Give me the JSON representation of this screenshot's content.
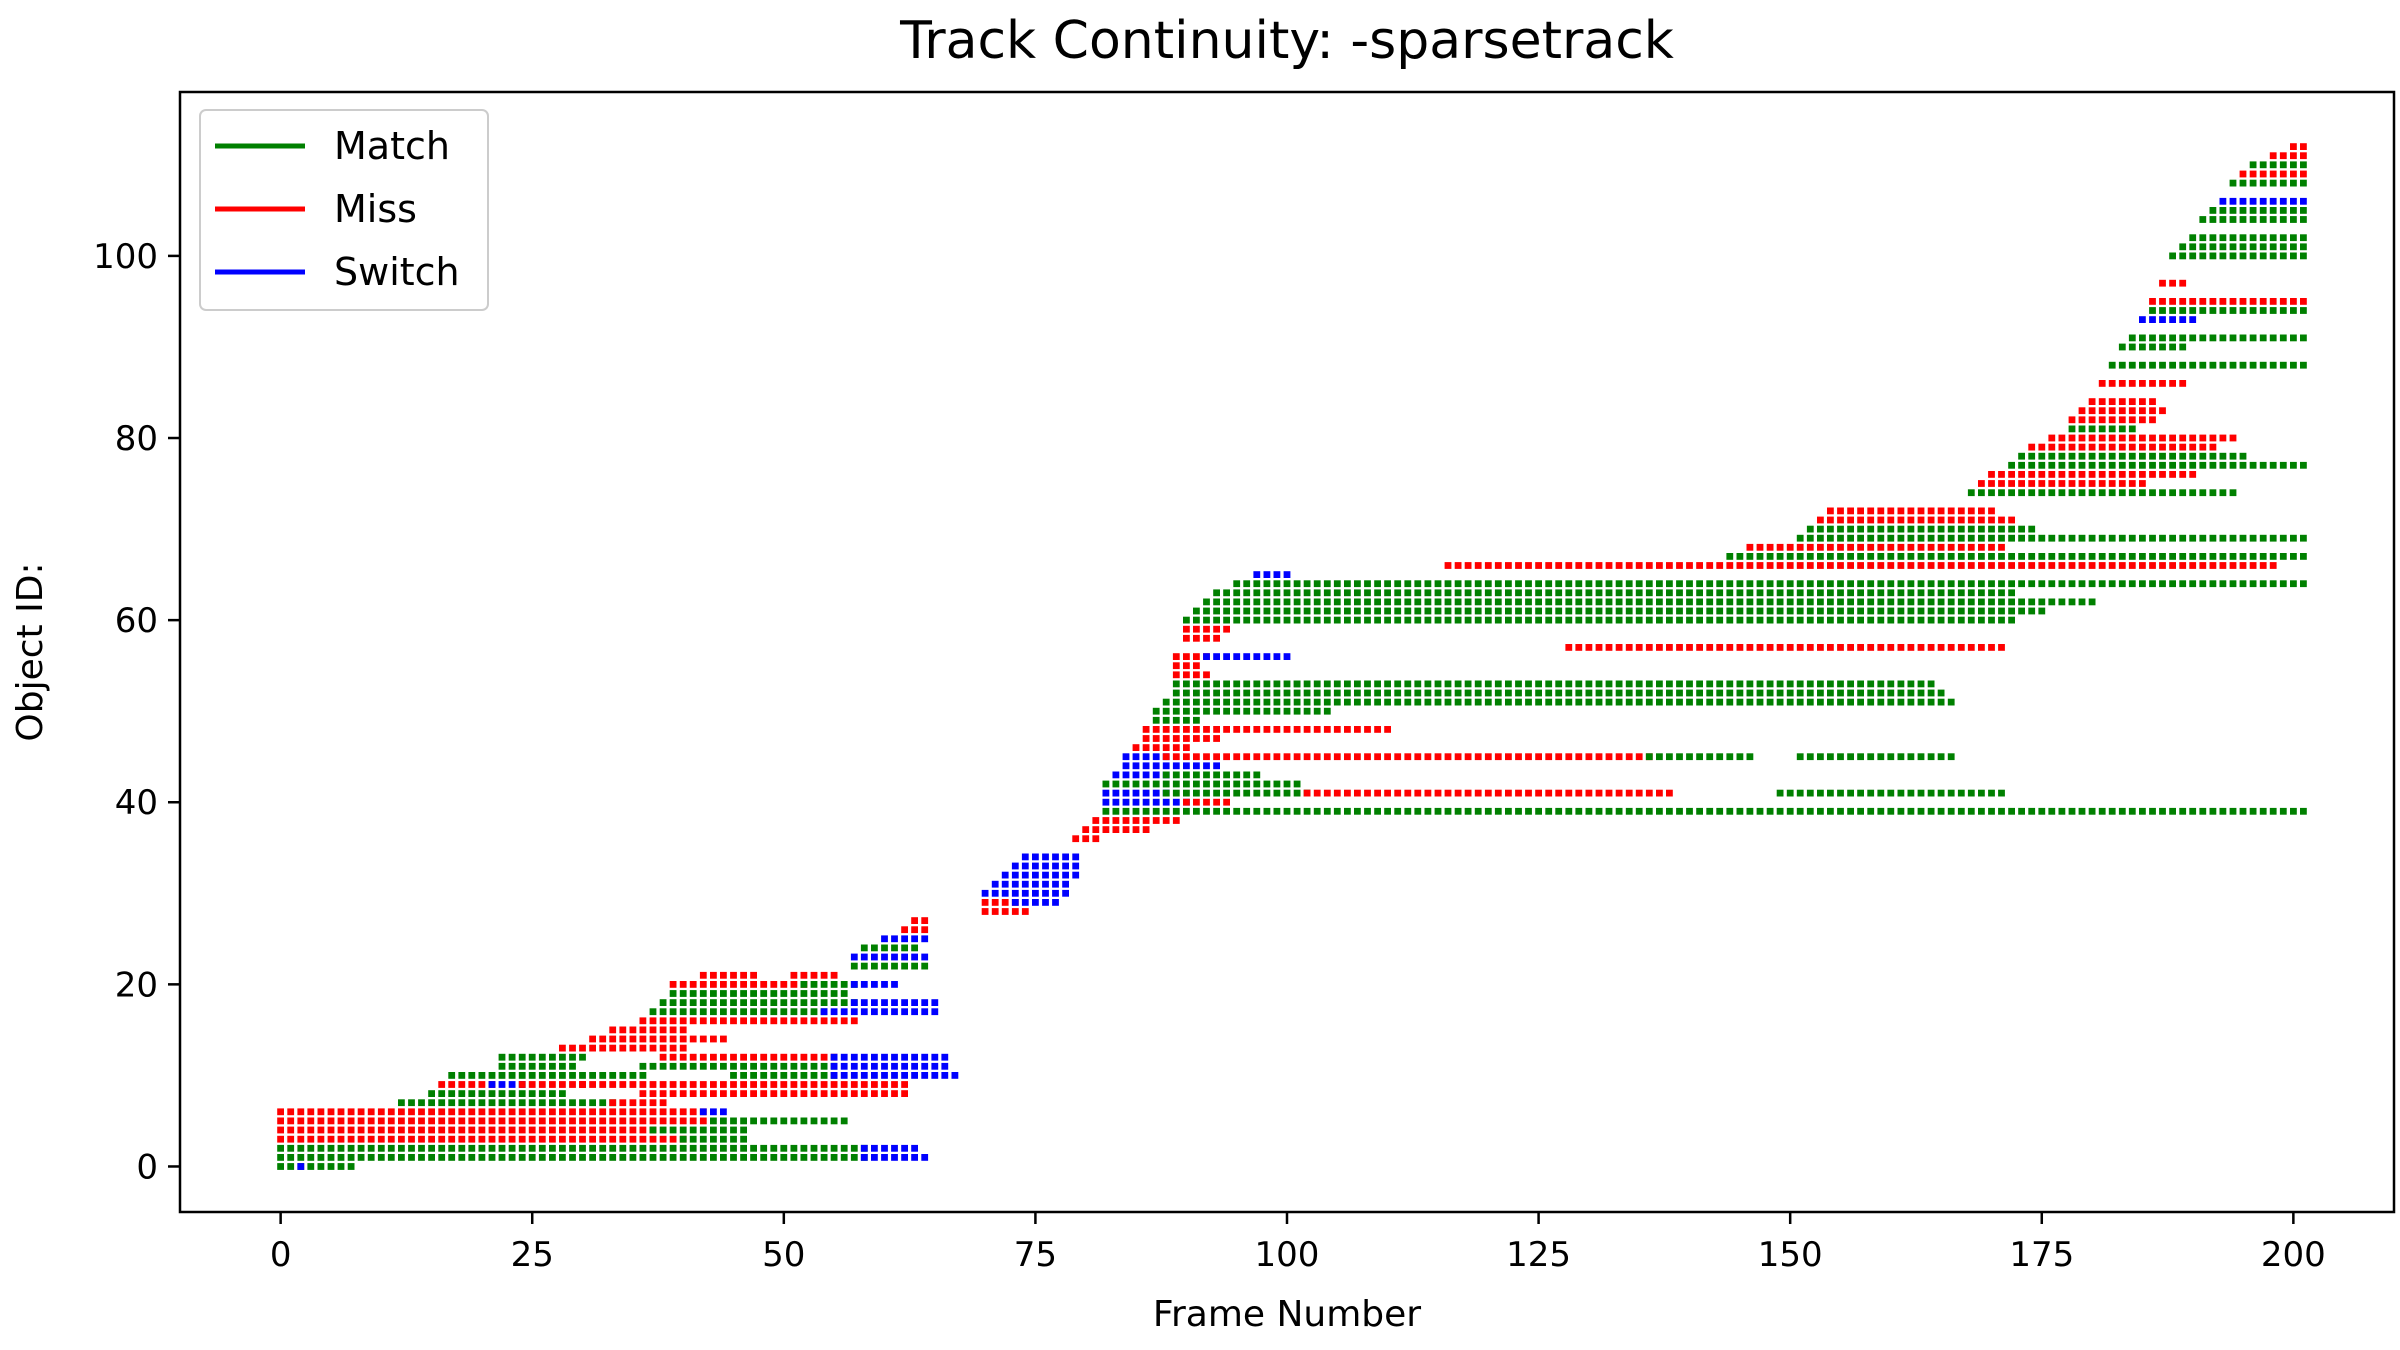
{
  "chart_data": {
    "type": "scatter",
    "title": "Track Continuity: -sparsetrack",
    "xlabel": "Frame Number",
    "ylabel": "Object ID:",
    "xlim": [
      -10,
      210
    ],
    "ylim": [
      -5,
      118
    ],
    "xticks": [
      0,
      25,
      50,
      75,
      100,
      125,
      150,
      175,
      200
    ],
    "yticks": [
      0,
      20,
      40,
      60,
      80,
      100
    ],
    "legend": {
      "placement": "top-left",
      "items": [
        {
          "key": "match",
          "label": "Match",
          "color": "#008000"
        },
        {
          "key": "miss",
          "label": "Miss",
          "color": "#ff0000"
        },
        {
          "key": "switch",
          "label": "Switch",
          "color": "#0000ff"
        }
      ]
    },
    "colors": {
      "match": "#008000",
      "miss": "#ff0000",
      "switch": "#0000ff"
    },
    "segments": [
      {
        "id": 0,
        "x0": 0,
        "x1": 7,
        "status": "match"
      },
      {
        "id": 0,
        "x0": 2,
        "x1": 2,
        "status": "switch"
      },
      {
        "id": 1,
        "x0": 0,
        "x1": 58,
        "status": "match"
      },
      {
        "id": 1,
        "x0": 58,
        "x1": 64,
        "status": "switch"
      },
      {
        "id": 2,
        "x0": 0,
        "x1": 58,
        "status": "match"
      },
      {
        "id": 2,
        "x0": 58,
        "x1": 63,
        "status": "switch"
      },
      {
        "id": 3,
        "x0": 0,
        "x1": 40,
        "status": "miss"
      },
      {
        "id": 3,
        "x0": 40,
        "x1": 46,
        "status": "match"
      },
      {
        "id": 4,
        "x0": 0,
        "x1": 37,
        "status": "miss"
      },
      {
        "id": 4,
        "x0": 37,
        "x1": 41,
        "status": "match"
      },
      {
        "id": 4,
        "x0": 42,
        "x1": 46,
        "status": "match"
      },
      {
        "id": 5,
        "x0": 0,
        "x1": 42,
        "status": "miss"
      },
      {
        "id": 5,
        "x0": 43,
        "x1": 56,
        "status": "match"
      },
      {
        "id": 6,
        "x0": 0,
        "x1": 42,
        "status": "miss"
      },
      {
        "id": 6,
        "x0": 42,
        "x1": 44,
        "status": "switch"
      },
      {
        "id": 7,
        "x0": 12,
        "x1": 33,
        "status": "match"
      },
      {
        "id": 7,
        "x0": 33,
        "x1": 38,
        "status": "miss"
      },
      {
        "id": 8,
        "x0": 15,
        "x1": 28,
        "status": "match"
      },
      {
        "id": 8,
        "x0": 36,
        "x1": 62,
        "status": "miss"
      },
      {
        "id": 9,
        "x0": 16,
        "x1": 21,
        "status": "miss"
      },
      {
        "id": 9,
        "x0": 21,
        "x1": 24,
        "status": "switch"
      },
      {
        "id": 9,
        "x0": 24,
        "x1": 30,
        "status": "miss"
      },
      {
        "id": 9,
        "x0": 30,
        "x1": 62,
        "status": "miss"
      },
      {
        "id": 10,
        "x0": 17,
        "x1": 36,
        "status": "match"
      },
      {
        "id": 10,
        "x0": 45,
        "x1": 55,
        "status": "match"
      },
      {
        "id": 10,
        "x0": 55,
        "x1": 67,
        "status": "switch"
      },
      {
        "id": 11,
        "x0": 22,
        "x1": 29,
        "status": "match"
      },
      {
        "id": 11,
        "x0": 36,
        "x1": 55,
        "status": "match"
      },
      {
        "id": 11,
        "x0": 55,
        "x1": 66,
        "status": "switch"
      },
      {
        "id": 12,
        "x0": 22,
        "x1": 30,
        "status": "match"
      },
      {
        "id": 12,
        "x0": 38,
        "x1": 55,
        "status": "miss"
      },
      {
        "id": 12,
        "x0": 55,
        "x1": 66,
        "status": "switch"
      },
      {
        "id": 13,
        "x0": 28,
        "x1": 40,
        "status": "miss"
      },
      {
        "id": 14,
        "x0": 31,
        "x1": 44,
        "status": "miss"
      },
      {
        "id": 15,
        "x0": 33,
        "x1": 40,
        "status": "miss"
      },
      {
        "id": 16,
        "x0": 36,
        "x1": 57,
        "status": "miss"
      },
      {
        "id": 17,
        "x0": 37,
        "x1": 54,
        "status": "match"
      },
      {
        "id": 17,
        "x0": 54,
        "x1": 65,
        "status": "switch"
      },
      {
        "id": 18,
        "x0": 38,
        "x1": 57,
        "status": "match"
      },
      {
        "id": 18,
        "x0": 57,
        "x1": 65,
        "status": "switch"
      },
      {
        "id": 19,
        "x0": 39,
        "x1": 56,
        "status": "match"
      },
      {
        "id": 20,
        "x0": 39,
        "x1": 52,
        "status": "miss"
      },
      {
        "id": 20,
        "x0": 52,
        "x1": 57,
        "status": "match"
      },
      {
        "id": 20,
        "x0": 57,
        "x1": 61,
        "status": "switch"
      },
      {
        "id": 21,
        "x0": 42,
        "x1": 47,
        "status": "miss"
      },
      {
        "id": 21,
        "x0": 51,
        "x1": 55,
        "status": "miss"
      },
      {
        "id": 22,
        "x0": 57,
        "x1": 64,
        "status": "match"
      },
      {
        "id": 23,
        "x0": 57,
        "x1": 64,
        "status": "switch"
      },
      {
        "id": 24,
        "x0": 58,
        "x1": 63,
        "status": "match"
      },
      {
        "id": 25,
        "x0": 60,
        "x1": 64,
        "status": "switch"
      },
      {
        "id": 26,
        "x0": 62,
        "x1": 64,
        "status": "miss"
      },
      {
        "id": 27,
        "x0": 63,
        "x1": 64,
        "status": "miss"
      },
      {
        "id": 28,
        "x0": 70,
        "x1": 74,
        "status": "miss"
      },
      {
        "id": 29,
        "x0": 70,
        "x1": 73,
        "status": "miss"
      },
      {
        "id": 29,
        "x0": 73,
        "x1": 77,
        "status": "switch"
      },
      {
        "id": 30,
        "x0": 70,
        "x1": 78,
        "status": "switch"
      },
      {
        "id": 31,
        "x0": 71,
        "x1": 78,
        "status": "switch"
      },
      {
        "id": 32,
        "x0": 72,
        "x1": 79,
        "status": "switch"
      },
      {
        "id": 33,
        "x0": 73,
        "x1": 79,
        "status": "switch"
      },
      {
        "id": 34,
        "x0": 74,
        "x1": 79,
        "status": "switch"
      },
      {
        "id": 36,
        "x0": 79,
        "x1": 81,
        "status": "miss"
      },
      {
        "id": 37,
        "x0": 80,
        "x1": 86,
        "status": "miss"
      },
      {
        "id": 38,
        "x0": 81,
        "x1": 89,
        "status": "miss"
      },
      {
        "id": 39,
        "x0": 82,
        "x1": 201,
        "status": "match"
      },
      {
        "id": 40,
        "x0": 82,
        "x1": 90,
        "status": "switch"
      },
      {
        "id": 40,
        "x0": 90,
        "x1": 94,
        "status": "miss"
      },
      {
        "id": 41,
        "x0": 82,
        "x1": 88,
        "status": "switch"
      },
      {
        "id": 41,
        "x0": 88,
        "x1": 102,
        "status": "match"
      },
      {
        "id": 41,
        "x0": 102,
        "x1": 138,
        "status": "miss"
      },
      {
        "id": 41,
        "x0": 149,
        "x1": 171,
        "status": "match"
      },
      {
        "id": 42,
        "x0": 82,
        "x1": 101,
        "status": "match"
      },
      {
        "id": 43,
        "x0": 83,
        "x1": 88,
        "status": "switch"
      },
      {
        "id": 43,
        "x0": 88,
        "x1": 97,
        "status": "match"
      },
      {
        "id": 44,
        "x0": 84,
        "x1": 90,
        "status": "switch"
      },
      {
        "id": 44,
        "x0": 91,
        "x1": 93,
        "status": "switch"
      },
      {
        "id": 45,
        "x0": 84,
        "x1": 88,
        "status": "switch"
      },
      {
        "id": 45,
        "x0": 88,
        "x1": 136,
        "status": "miss"
      },
      {
        "id": 45,
        "x0": 136,
        "x1": 146,
        "status": "match"
      },
      {
        "id": 45,
        "x0": 151,
        "x1": 166,
        "status": "match"
      },
      {
        "id": 46,
        "x0": 85,
        "x1": 90,
        "status": "miss"
      },
      {
        "id": 47,
        "x0": 86,
        "x1": 93,
        "status": "miss"
      },
      {
        "id": 48,
        "x0": 86,
        "x1": 110,
        "status": "miss"
      },
      {
        "id": 49,
        "x0": 87,
        "x1": 91,
        "status": "match"
      },
      {
        "id": 50,
        "x0": 87,
        "x1": 104,
        "status": "match"
      },
      {
        "id": 51,
        "x0": 88,
        "x1": 166,
        "status": "match"
      },
      {
        "id": 52,
        "x0": 89,
        "x1": 165,
        "status": "match"
      },
      {
        "id": 53,
        "x0": 89,
        "x1": 101,
        "status": "match"
      },
      {
        "id": 53,
        "x0": 101,
        "x1": 164,
        "status": "match"
      },
      {
        "id": 54,
        "x0": 89,
        "x1": 92,
        "status": "miss"
      },
      {
        "id": 55,
        "x0": 89,
        "x1": 91,
        "status": "miss"
      },
      {
        "id": 56,
        "x0": 89,
        "x1": 92,
        "status": "miss"
      },
      {
        "id": 56,
        "x0": 92,
        "x1": 100,
        "status": "switch"
      },
      {
        "id": 57,
        "x0": 128,
        "x1": 171,
        "status": "miss"
      },
      {
        "id": 58,
        "x0": 90,
        "x1": 93,
        "status": "miss"
      },
      {
        "id": 59,
        "x0": 90,
        "x1": 94,
        "status": "miss"
      },
      {
        "id": 60,
        "x0": 90,
        "x1": 172,
        "status": "match"
      },
      {
        "id": 61,
        "x0": 91,
        "x1": 175,
        "status": "match"
      },
      {
        "id": 62,
        "x0": 92,
        "x1": 180,
        "status": "match"
      },
      {
        "id": 63,
        "x0": 93,
        "x1": 172,
        "status": "match"
      },
      {
        "id": 64,
        "x0": 95,
        "x1": 201,
        "status": "match"
      },
      {
        "id": 65,
        "x0": 97,
        "x1": 100,
        "status": "switch"
      },
      {
        "id": 66,
        "x0": 116,
        "x1": 198,
        "status": "miss"
      },
      {
        "id": 67,
        "x0": 144,
        "x1": 201,
        "status": "match"
      },
      {
        "id": 68,
        "x0": 146,
        "x1": 171,
        "status": "miss"
      },
      {
        "id": 69,
        "x0": 151,
        "x1": 201,
        "status": "match"
      },
      {
        "id": 70,
        "x0": 152,
        "x1": 174,
        "status": "match"
      },
      {
        "id": 71,
        "x0": 153,
        "x1": 172,
        "status": "miss"
      },
      {
        "id": 72,
        "x0": 154,
        "x1": 170,
        "status": "miss"
      },
      {
        "id": 74,
        "x0": 168,
        "x1": 194,
        "status": "match"
      },
      {
        "id": 75,
        "x0": 169,
        "x1": 185,
        "status": "miss"
      },
      {
        "id": 76,
        "x0": 170,
        "x1": 190,
        "status": "miss"
      },
      {
        "id": 77,
        "x0": 172,
        "x1": 201,
        "status": "match"
      },
      {
        "id": 78,
        "x0": 173,
        "x1": 195,
        "status": "match"
      },
      {
        "id": 79,
        "x0": 174,
        "x1": 192,
        "status": "miss"
      },
      {
        "id": 80,
        "x0": 176,
        "x1": 194,
        "status": "miss"
      },
      {
        "id": 81,
        "x0": 178,
        "x1": 184,
        "status": "match"
      },
      {
        "id": 82,
        "x0": 178,
        "x1": 186,
        "status": "miss"
      },
      {
        "id": 83,
        "x0": 179,
        "x1": 187,
        "status": "miss"
      },
      {
        "id": 84,
        "x0": 180,
        "x1": 186,
        "status": "miss"
      },
      {
        "id": 86,
        "x0": 181,
        "x1": 189,
        "status": "miss"
      },
      {
        "id": 88,
        "x0": 182,
        "x1": 201,
        "status": "match"
      },
      {
        "id": 90,
        "x0": 183,
        "x1": 189,
        "status": "match"
      },
      {
        "id": 91,
        "x0": 184,
        "x1": 201,
        "status": "match"
      },
      {
        "id": 93,
        "x0": 185,
        "x1": 190,
        "status": "switch"
      },
      {
        "id": 94,
        "x0": 186,
        "x1": 201,
        "status": "match"
      },
      {
        "id": 95,
        "x0": 186,
        "x1": 201,
        "status": "miss"
      },
      {
        "id": 97,
        "x0": 187,
        "x1": 189,
        "status": "miss"
      },
      {
        "id": 100,
        "x0": 188,
        "x1": 201,
        "status": "match"
      },
      {
        "id": 101,
        "x0": 189,
        "x1": 201,
        "status": "match"
      },
      {
        "id": 102,
        "x0": 190,
        "x1": 201,
        "status": "match"
      },
      {
        "id": 104,
        "x0": 191,
        "x1": 201,
        "status": "match"
      },
      {
        "id": 105,
        "x0": 192,
        "x1": 201,
        "status": "match"
      },
      {
        "id": 106,
        "x0": 193,
        "x1": 201,
        "status": "switch"
      },
      {
        "id": 108,
        "x0": 194,
        "x1": 201,
        "status": "match"
      },
      {
        "id": 109,
        "x0": 195,
        "x1": 201,
        "status": "miss"
      },
      {
        "id": 110,
        "x0": 196,
        "x1": 201,
        "status": "match"
      },
      {
        "id": 111,
        "x0": 198,
        "x1": 201,
        "status": "miss"
      },
      {
        "id": 112,
        "x0": 200,
        "x1": 201,
        "status": "miss"
      }
    ]
  }
}
